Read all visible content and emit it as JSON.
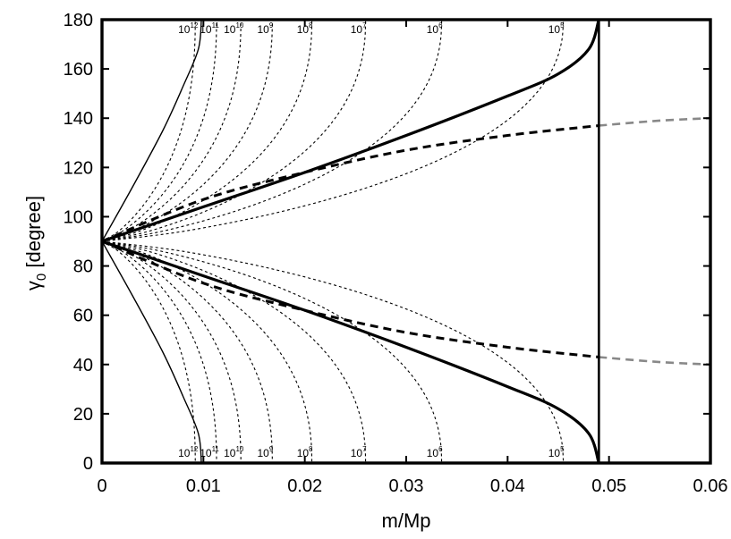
{
  "chart_data": {
    "type": "line",
    "xlabel": "m/Mp",
    "ylabel_main": "γ",
    "ylabel_sub": "0",
    "ylabel_rest": " [degree]",
    "xlim": [
      0,
      0.06
    ],
    "ylim": [
      0,
      180
    ],
    "xticks": [
      0,
      0.01,
      0.02,
      0.03,
      0.04,
      0.05,
      0.06
    ],
    "xtick_labels": [
      "0",
      "0.01",
      "0.02",
      "0.03",
      "0.04",
      "0.05",
      "0.06"
    ],
    "yticks": [
      0,
      20,
      40,
      60,
      80,
      100,
      120,
      140,
      160,
      180
    ],
    "ytick_labels": [
      "0",
      "20",
      "40",
      "60",
      "80",
      "100",
      "120",
      "140",
      "160",
      "180"
    ],
    "grid": false,
    "vertical_line_x": 0.049,
    "series": [
      {
        "style": "thick-solid",
        "color": "#000000",
        "points_upper": [
          [
            0,
            90
          ],
          [
            0.01,
            104
          ],
          [
            0.02,
            118
          ],
          [
            0.03,
            133
          ],
          [
            0.04,
            149
          ],
          [
            0.045,
            158
          ],
          [
            0.048,
            168
          ],
          [
            0.049,
            180
          ]
        ],
        "points_lower": [
          [
            0,
            90
          ],
          [
            0.01,
            76
          ],
          [
            0.02,
            62
          ],
          [
            0.03,
            47
          ],
          [
            0.04,
            31
          ],
          [
            0.045,
            22
          ],
          [
            0.048,
            12
          ],
          [
            0.049,
            0
          ]
        ]
      },
      {
        "style": "thick-dashed",
        "color": "#000000",
        "points_upper": [
          [
            0,
            90
          ],
          [
            0.01,
            107
          ],
          [
            0.02,
            118
          ],
          [
            0.03,
            127
          ],
          [
            0.04,
            133
          ],
          [
            0.049,
            137
          ]
        ],
        "points_lower": [
          [
            0,
            90
          ],
          [
            0.01,
            73
          ],
          [
            0.02,
            62
          ],
          [
            0.03,
            53
          ],
          [
            0.04,
            47
          ],
          [
            0.049,
            43
          ]
        ]
      },
      {
        "style": "gray-dashed",
        "color": "#888888",
        "points_upper": [
          [
            0.049,
            137
          ],
          [
            0.055,
            139
          ],
          [
            0.06,
            140
          ]
        ],
        "points_lower": [
          [
            0.049,
            43
          ],
          [
            0.055,
            41
          ],
          [
            0.06,
            40
          ]
        ]
      },
      {
        "style": "thin-solid",
        "color": "#000000",
        "points_upper": [
          [
            0,
            90
          ],
          [
            0.003,
            112
          ],
          [
            0.006,
            135
          ],
          [
            0.008,
            153
          ],
          [
            0.0095,
            168
          ],
          [
            0.0098,
            180
          ]
        ],
        "points_lower": [
          [
            0,
            90
          ],
          [
            0.003,
            68
          ],
          [
            0.006,
            45
          ],
          [
            0.008,
            27
          ],
          [
            0.0095,
            12
          ],
          [
            0.0098,
            0
          ]
        ]
      }
    ],
    "dotted_curves": [
      {
        "base": "10",
        "exp": "12",
        "x_end": 0.0092
      },
      {
        "base": "10",
        "exp": "11",
        "x_end": 0.0113
      },
      {
        "base": "10",
        "exp": "10",
        "x_end": 0.0137
      },
      {
        "base": "10",
        "exp": "9",
        "x_end": 0.0168
      },
      {
        "base": "10",
        "exp": "8",
        "x_end": 0.0207
      },
      {
        "base": "10",
        "exp": "7",
        "x_end": 0.026
      },
      {
        "base": "10",
        "exp": "6",
        "x_end": 0.0335
      },
      {
        "base": "10",
        "exp": "5",
        "x_end": 0.0455
      }
    ]
  }
}
